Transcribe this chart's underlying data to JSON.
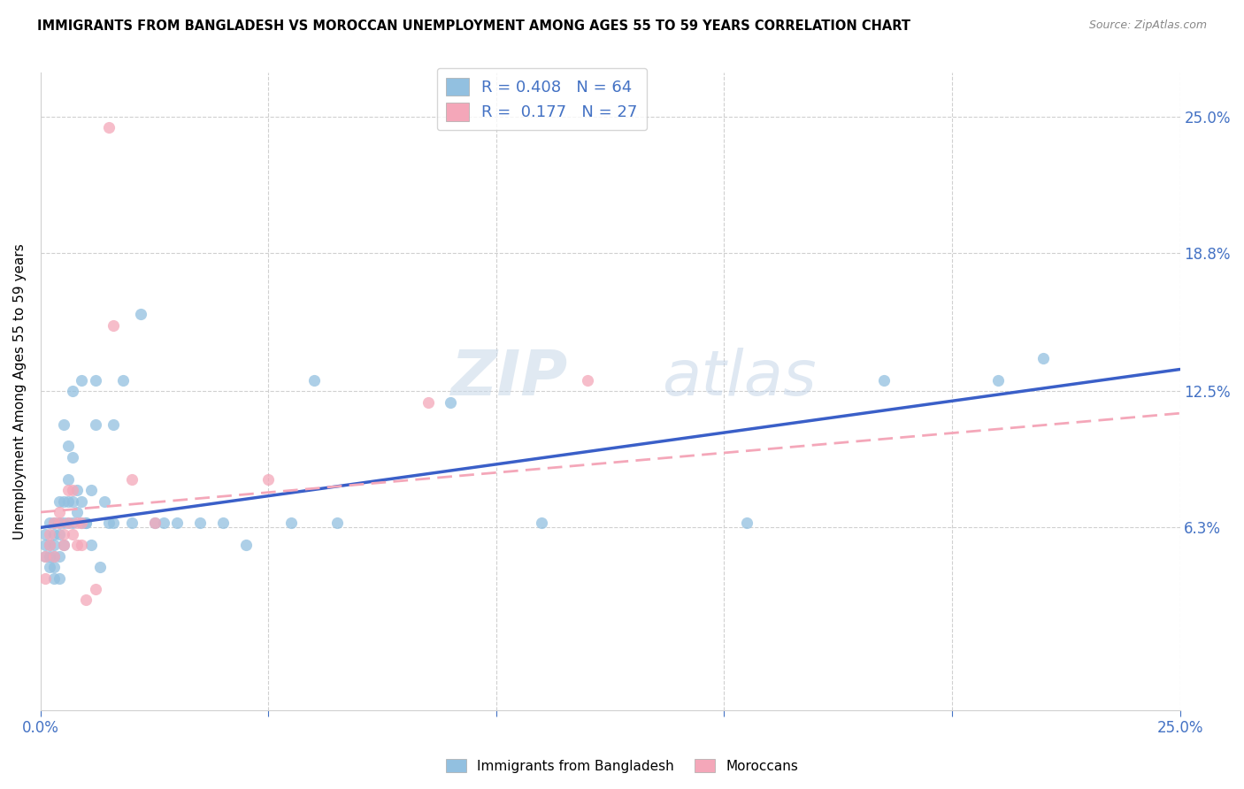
{
  "title": "IMMIGRANTS FROM BANGLADESH VS MOROCCAN UNEMPLOYMENT AMONG AGES 55 TO 59 YEARS CORRELATION CHART",
  "source": "Source: ZipAtlas.com",
  "ylabel_label": "Unemployment Among Ages 55 to 59 years",
  "legend_label1": "Immigrants from Bangladesh",
  "legend_label2": "Moroccans",
  "R1": 0.408,
  "N1": 64,
  "R2": 0.177,
  "N2": 27,
  "color_blue": "#92c0e0",
  "color_pink": "#f4a7b9",
  "color_line_blue": "#3a5fc8",
  "color_line_pink": "#f4a7b9",
  "xlim": [
    0,
    0.25
  ],
  "ylim": [
    -0.02,
    0.27
  ],
  "ytick_vals": [
    0.063,
    0.125,
    0.188,
    0.25
  ],
  "ytick_labels": [
    "6.3%",
    "12.5%",
    "18.8%",
    "25.0%"
  ],
  "xtick_vals": [
    0.0,
    0.05,
    0.1,
    0.15,
    0.2,
    0.25
  ],
  "xtick_labels": [
    "0.0%",
    "",
    "",
    "",
    "",
    "25.0%"
  ],
  "blue_trend_y0": 0.063,
  "blue_trend_y1": 0.135,
  "pink_trend_y0": 0.07,
  "pink_trend_y1": 0.115,
  "bangladesh_x": [
    0.001,
    0.001,
    0.001,
    0.002,
    0.002,
    0.002,
    0.002,
    0.003,
    0.003,
    0.003,
    0.003,
    0.003,
    0.003,
    0.004,
    0.004,
    0.004,
    0.004,
    0.004,
    0.005,
    0.005,
    0.005,
    0.005,
    0.006,
    0.006,
    0.006,
    0.006,
    0.007,
    0.007,
    0.007,
    0.007,
    0.008,
    0.008,
    0.009,
    0.009,
    0.009,
    0.01,
    0.01,
    0.011,
    0.011,
    0.012,
    0.012,
    0.013,
    0.014,
    0.015,
    0.016,
    0.016,
    0.018,
    0.02,
    0.022,
    0.025,
    0.027,
    0.03,
    0.035,
    0.04,
    0.045,
    0.055,
    0.06,
    0.065,
    0.09,
    0.11,
    0.155,
    0.185,
    0.21,
    0.22
  ],
  "bangladesh_y": [
    0.05,
    0.055,
    0.06,
    0.045,
    0.05,
    0.055,
    0.065,
    0.04,
    0.045,
    0.05,
    0.055,
    0.06,
    0.065,
    0.04,
    0.05,
    0.06,
    0.065,
    0.075,
    0.055,
    0.065,
    0.11,
    0.075,
    0.065,
    0.075,
    0.085,
    0.1,
    0.065,
    0.075,
    0.095,
    0.125,
    0.07,
    0.08,
    0.075,
    0.065,
    0.13,
    0.065,
    0.065,
    0.08,
    0.055,
    0.11,
    0.13,
    0.045,
    0.075,
    0.065,
    0.065,
    0.11,
    0.13,
    0.065,
    0.16,
    0.065,
    0.065,
    0.065,
    0.065,
    0.065,
    0.055,
    0.065,
    0.13,
    0.065,
    0.12,
    0.065,
    0.065,
    0.13,
    0.13,
    0.14
  ],
  "moroccan_x": [
    0.001,
    0.001,
    0.002,
    0.002,
    0.003,
    0.003,
    0.004,
    0.004,
    0.005,
    0.005,
    0.006,
    0.006,
    0.007,
    0.007,
    0.008,
    0.008,
    0.009,
    0.009,
    0.01,
    0.012,
    0.015,
    0.016,
    0.02,
    0.025,
    0.05,
    0.085,
    0.12
  ],
  "moroccan_y": [
    0.04,
    0.05,
    0.055,
    0.06,
    0.05,
    0.065,
    0.065,
    0.07,
    0.055,
    0.06,
    0.065,
    0.08,
    0.06,
    0.08,
    0.055,
    0.065,
    0.055,
    0.065,
    0.03,
    0.035,
    0.245,
    0.155,
    0.085,
    0.065,
    0.085,
    0.12,
    0.13
  ]
}
